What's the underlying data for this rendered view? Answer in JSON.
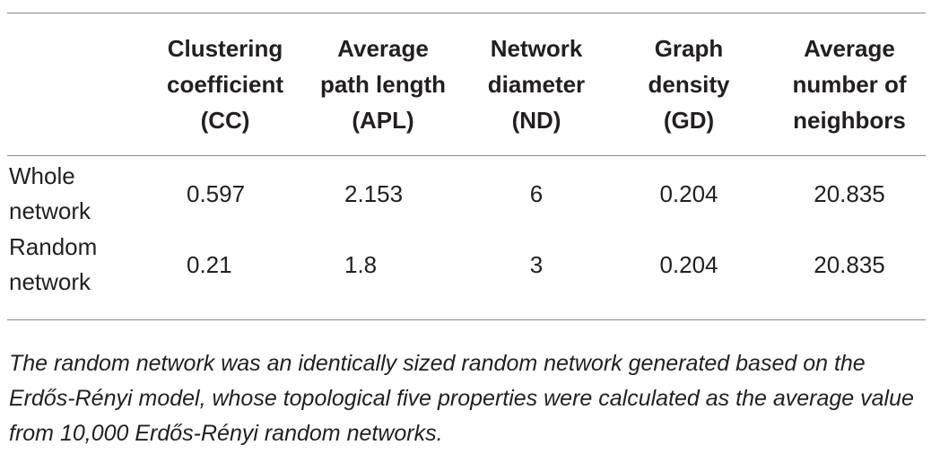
{
  "table": {
    "headers": [
      "",
      "Clustering\ncoefficient\n(CC)",
      "Average\npath length\n(APL)",
      "Network\ndiameter\n(ND)",
      "Graph\ndensity\n(GD)",
      "Average\nnumber of\nneighbors"
    ],
    "rows": [
      {
        "label": "Whole\nnetwork",
        "cc": "0.597",
        "apl": "2.153",
        "nd": "6",
        "gd": "0.204",
        "neighbors": "20.835"
      },
      {
        "label": "Random\nnetwork",
        "cc": "0.21",
        "apl": "1.8",
        "nd": "3",
        "gd": "0.204",
        "neighbors": "20.835"
      }
    ]
  },
  "footnote": "The random network was an identically sized random network generated based on the Erdős-Rényi model, whose topological five properties were calculated as the average value from 10,000 Erdős-Rényi random networks."
}
